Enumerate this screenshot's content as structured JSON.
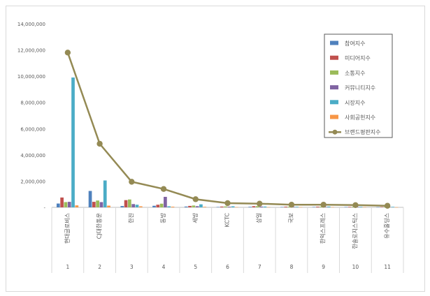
{
  "chart_data": {
    "type": "bar",
    "categories": [
      "현대글로비스",
      "CJ대한통운",
      "한진",
      "동방",
      "세방",
      "KCTC",
      "삼일",
      "국보",
      "한익스프레스",
      "한솔로지스틱스",
      "유수홀딩스"
    ],
    "category_numbers": [
      "1",
      "2",
      "3",
      "4",
      "5",
      "6",
      "7",
      "8",
      "9",
      "10",
      "11"
    ],
    "y_ticks": [
      "-",
      "2,000,000",
      "4,000,000",
      "6,000,000",
      "8,000,000",
      "10,000,000",
      "12,000,000",
      "14,000,000"
    ],
    "ylim": [
      0,
      14000000
    ],
    "legend_position": "right",
    "series": [
      {
        "name": "참여지수",
        "type": "bar",
        "color": "#4f81bd",
        "values": [
          290000,
          1250000,
          100000,
          120000,
          60000,
          30000,
          40000,
          30000,
          30000,
          30000,
          20000
        ]
      },
      {
        "name": "미디어지수",
        "type": "bar",
        "color": "#c0504d",
        "values": [
          750000,
          420000,
          550000,
          200000,
          110000,
          60000,
          90000,
          50000,
          50000,
          40000,
          30000
        ]
      },
      {
        "name": "소통지수",
        "type": "bar",
        "color": "#9bbb59",
        "values": [
          400000,
          520000,
          600000,
          280000,
          140000,
          70000,
          90000,
          50000,
          60000,
          50000,
          40000
        ]
      },
      {
        "name": "커뮤니티지수",
        "type": "bar",
        "color": "#8064a2",
        "values": [
          420000,
          400000,
          250000,
          800000,
          90000,
          50000,
          60000,
          40000,
          40000,
          40000,
          30000
        ]
      },
      {
        "name": "시장지수",
        "type": "bar",
        "color": "#4bacc6",
        "values": [
          9900000,
          2050000,
          200000,
          80000,
          230000,
          80000,
          60000,
          40000,
          60000,
          40000,
          40000
        ]
      },
      {
        "name": "사회공헌지수",
        "type": "bar",
        "color": "#f79646",
        "values": [
          150000,
          130000,
          80000,
          50000,
          40000,
          20000,
          20000,
          20000,
          20000,
          20000,
          10000
        ]
      },
      {
        "name": "브랜드평판지수",
        "type": "line",
        "color": "#948a54",
        "values": [
          11800000,
          4850000,
          1950000,
          1400000,
          620000,
          320000,
          280000,
          200000,
          200000,
          170000,
          120000
        ]
      }
    ]
  }
}
